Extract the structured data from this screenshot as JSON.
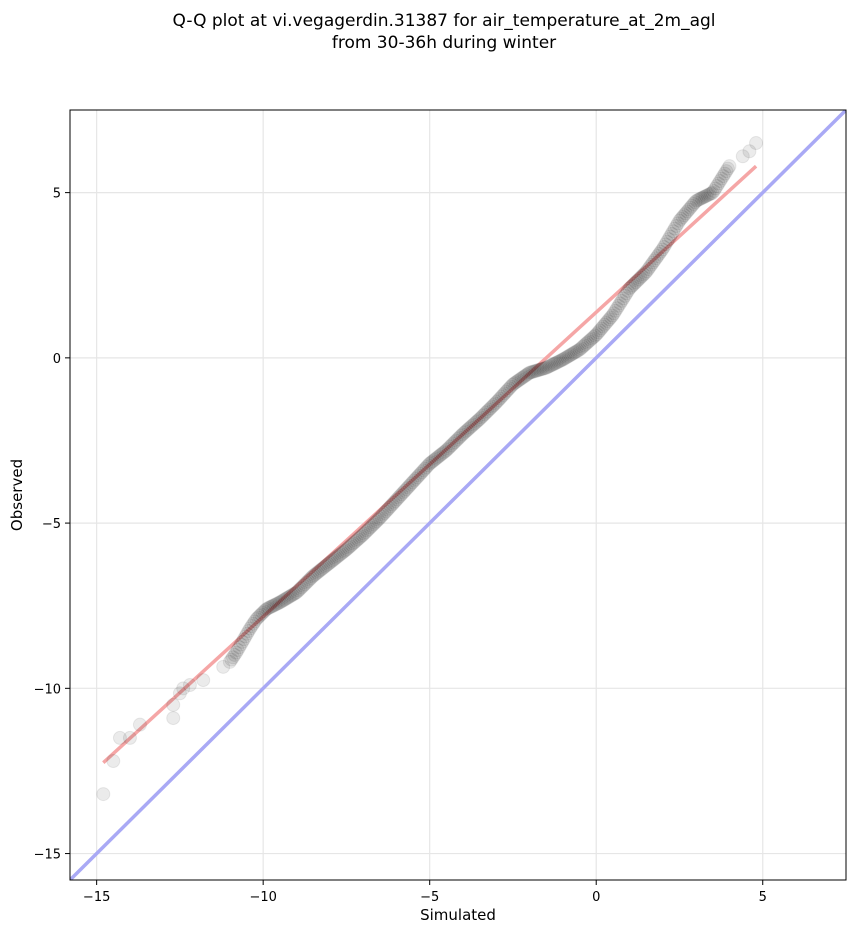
{
  "chart_data": {
    "type": "scatter",
    "title_lines": [
      "Q-Q plot at vi.vegagerdin.31387 for air_temperature_at_2m_agl",
      "from 30-36h during winter"
    ],
    "xlabel": "Simulated",
    "ylabel": "Observed",
    "xlim": [
      -15.8,
      7.5
    ],
    "ylim": [
      -15.8,
      7.5
    ],
    "xticks": [
      -15,
      -10,
      -5,
      0,
      5
    ],
    "yticks": [
      -15,
      -10,
      -5,
      0,
      5
    ],
    "xtick_labels": [
      "−15",
      "−10",
      "−5",
      "0",
      "5"
    ],
    "ytick_labels": [
      "−15",
      "−10",
      "−5",
      "0",
      "5"
    ],
    "grid": true,
    "point_color": "#000000",
    "reference_line": {
      "x": [
        -15.8,
        7.5
      ],
      "y": [
        -15.8,
        7.5
      ],
      "color": "#a9a9f5"
    },
    "fit_line": {
      "x": [
        -14.8,
        4.8
      ],
      "y": [
        -12.25,
        5.8
      ],
      "color": "#f5a6a6"
    },
    "knots": [
      [
        -14.8,
        -13.2
      ],
      [
        -14.5,
        -12.2
      ],
      [
        -14.3,
        -11.5
      ],
      [
        -14.0,
        -11.5
      ],
      [
        -13.7,
        -11.1
      ],
      [
        -12.7,
        -10.9
      ],
      [
        -12.7,
        -10.5
      ],
      [
        -12.5,
        -10.15
      ],
      [
        -12.4,
        -10.0
      ],
      [
        -12.2,
        -9.9
      ],
      [
        -11.8,
        -9.75
      ],
      [
        -11.2,
        -9.35
      ],
      [
        -11.0,
        -9.2
      ],
      [
        -10.8,
        -8.9
      ],
      [
        -10.6,
        -8.55
      ],
      [
        -10.4,
        -8.2
      ],
      [
        -10.2,
        -7.9
      ],
      [
        -9.9,
        -7.6
      ],
      [
        -9.5,
        -7.4
      ],
      [
        -9.0,
        -7.1
      ],
      [
        -8.5,
        -6.6
      ],
      [
        -8.0,
        -6.2
      ],
      [
        -7.5,
        -5.8
      ],
      [
        -7.0,
        -5.35
      ],
      [
        -6.5,
        -4.85
      ],
      [
        -6.0,
        -4.3
      ],
      [
        -5.5,
        -3.75
      ],
      [
        -5.0,
        -3.2
      ],
      [
        -4.5,
        -2.8
      ],
      [
        -4.0,
        -2.3
      ],
      [
        -3.5,
        -1.85
      ],
      [
        -3.0,
        -1.35
      ],
      [
        -2.5,
        -0.8
      ],
      [
        -2.0,
        -0.45
      ],
      [
        -1.5,
        -0.3
      ],
      [
        -1.0,
        -0.05
      ],
      [
        -0.5,
        0.25
      ],
      [
        0.0,
        0.7
      ],
      [
        0.5,
        1.3
      ],
      [
        1.0,
        2.1
      ],
      [
        1.5,
        2.6
      ],
      [
        2.0,
        3.3
      ],
      [
        2.5,
        4.15
      ],
      [
        3.0,
        4.75
      ],
      [
        3.5,
        5.0
      ],
      [
        4.0,
        5.8
      ],
      [
        4.4,
        6.1
      ],
      [
        4.6,
        6.25
      ],
      [
        4.8,
        6.5
      ]
    ],
    "density_segments": [
      [
        -11.0,
        4.0,
        320
      ]
    ]
  }
}
